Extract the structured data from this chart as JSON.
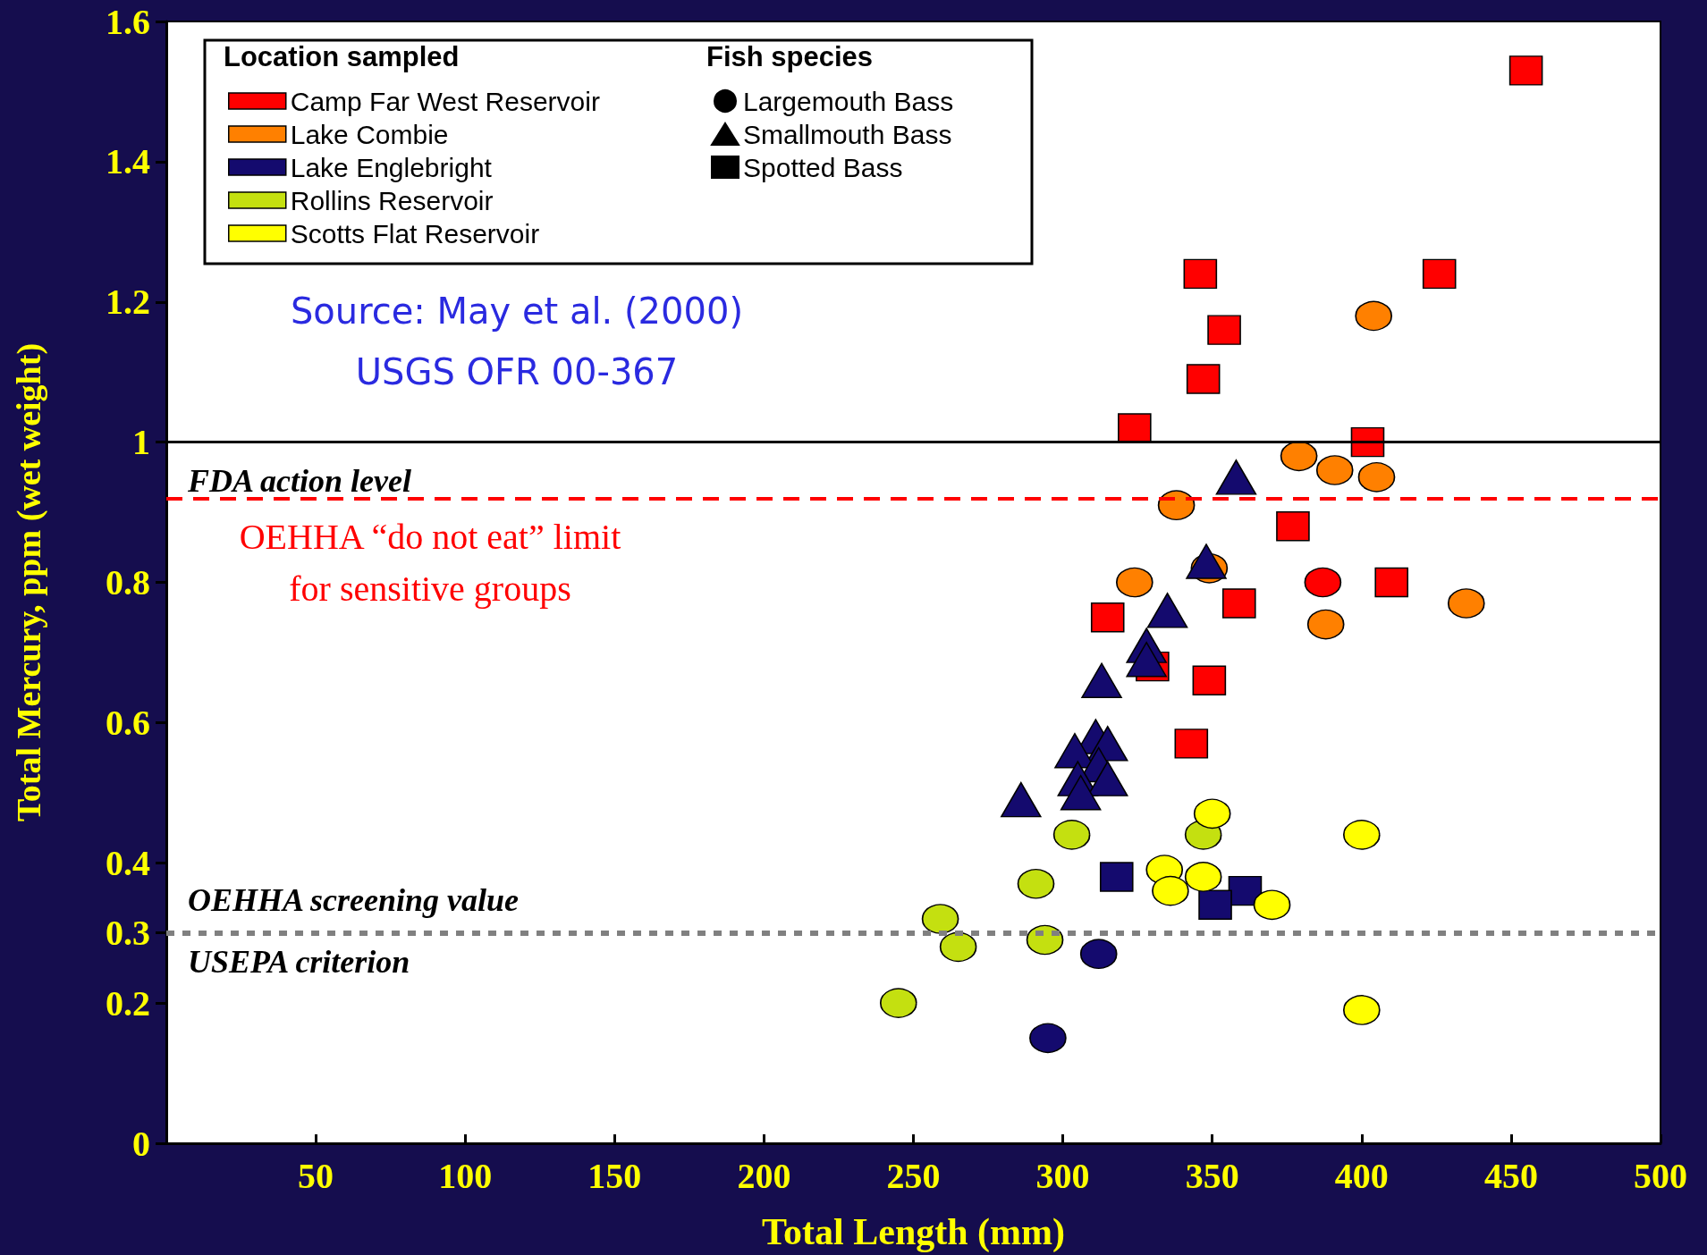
{
  "chart_data": {
    "type": "scatter",
    "xlabel": "Total Length (mm)",
    "ylabel": "Total Mercury, ppm (wet weight)",
    "legend_title": "Location sampled",
    "legend": "top left",
    "annotations": [
      "Source: May et al. (2000)",
      "USGS OFR 00-367",
      "Fish species",
      {
        "text": "USEPA criterion",
        "y": 0.3
      }
    ],
    "xlim": [
      0,
      500
    ],
    "xticks": [
      50,
      100,
      150,
      200,
      250,
      300,
      350,
      400,
      450,
      500
    ],
    "ylim": [
      0,
      1.6
    ],
    "yticks": [
      0,
      0.2,
      0.3,
      0.4,
      0.6,
      0.8,
      1,
      1.2,
      1.4,
      1.6
    ],
    "ref_lines": [
      {
        "axis": "y",
        "value": 1,
        "label": "FDA action level",
        "color": "#000000",
        "line_style": "solid"
      },
      {
        "axis": "y",
        "value": 0.92,
        "label": "OEHHA “do not eat” limit\nfor sensitive groups",
        "color": "#ff0000",
        "line_style": "dashed"
      },
      {
        "axis": "y",
        "value": 0.3,
        "label": "OEHHA screening value",
        "color": "#808080",
        "line_style": "dotted"
      }
    ],
    "series": [
      {
        "color": "#ff0000",
        "marker": "square",
        "x": [
          455,
          346,
          426,
          354,
          347,
          324,
          402,
          377,
          410,
          359,
          315,
          330,
          349,
          343
        ],
        "values": [
          1.53,
          1.24,
          1.24,
          1.16,
          1.09,
          1.02,
          1.0,
          0.88,
          0.8,
          0.77,
          0.75,
          0.68,
          0.66,
          0.57
        ]
      },
      {
        "color": "#ff0000",
        "marker": "circle",
        "x": [
          387
        ],
        "values": [
          0.8
        ]
      },
      {
        "color": "#ff8000",
        "marker": "circle",
        "x": [
          404,
          379,
          391,
          405,
          338,
          349,
          324,
          435,
          388
        ],
        "values": [
          1.18,
          0.98,
          0.96,
          0.95,
          0.91,
          0.82,
          0.8,
          0.77,
          0.74
        ]
      },
      {
        "color": "#140a6e",
        "marker": "triangle",
        "x": [
          358,
          348,
          335,
          328,
          328,
          313,
          311,
          315,
          304,
          312,
          305,
          315,
          306,
          286
        ],
        "values": [
          0.95,
          0.83,
          0.76,
          0.71,
          0.69,
          0.66,
          0.58,
          0.57,
          0.56,
          0.54,
          0.52,
          0.52,
          0.5,
          0.49
        ]
      },
      {
        "color": "#140a6e",
        "marker": "square",
        "x": [
          318,
          361,
          351
        ],
        "values": [
          0.38,
          0.36,
          0.34
        ]
      },
      {
        "color": "#140a6e",
        "marker": "circle",
        "x": [
          312,
          295
        ],
        "values": [
          0.27,
          0.15
        ]
      },
      {
        "color": "#c4e010",
        "marker": "circle",
        "x": [
          303,
          347,
          291,
          259,
          294,
          265,
          245
        ],
        "values": [
          0.44,
          0.44,
          0.37,
          0.32,
          0.29,
          0.28,
          0.2
        ]
      },
      {
        "color": "#ffff00",
        "marker": "circle",
        "x": [
          350,
          400,
          334,
          336,
          347,
          370,
          400
        ],
        "values": [
          0.47,
          0.44,
          0.39,
          0.36,
          0.38,
          0.34,
          0.19
        ]
      },
      {
        "name": "Camp Far West Reservoir",
        "color": "#ff0000"
      },
      {
        "name": "Lake Combie",
        "color": "#ff8000"
      },
      {
        "name": "Lake Englebright",
        "color": "#140a6e"
      },
      {
        "name": "Rollins Reservoir",
        "color": "#c4e010"
      },
      {
        "name": "Scotts Flat Reservoir",
        "color": "#ffff00"
      },
      {
        "name": "Largemouth Bass",
        "color": "#000000",
        "marker": "circle"
      },
      {
        "name": "Smallmouth Bass",
        "color": "#000000",
        "marker": "triangle"
      },
      {
        "name": "Spotted Bass",
        "color": "#000000",
        "marker": "square"
      }
    ]
  }
}
